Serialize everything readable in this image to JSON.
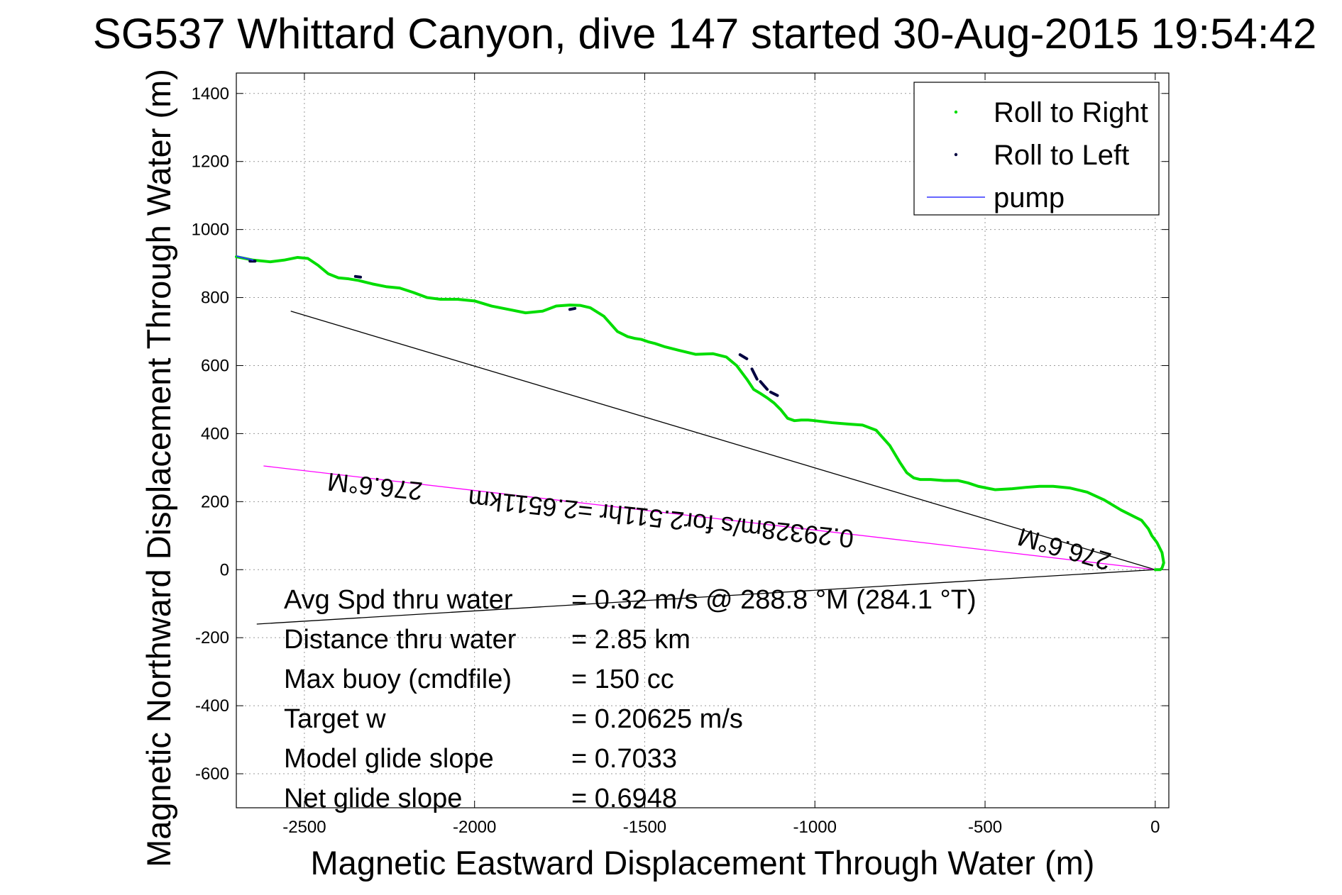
{
  "chart_data": {
    "type": "line",
    "title": "SG537 Whittard Canyon, dive 147 started 30-Aug-2015 19:54:42",
    "xlabel": "Magnetic Eastward Displacement Through Water (m)",
    "ylabel": "Magnetic Northward Displacement Through Water (m)",
    "xlim": [
      -2700,
      40
    ],
    "ylim": [
      -700,
      1460
    ],
    "xticks": [
      -2500,
      -2000,
      -1500,
      -1000,
      -500,
      0
    ],
    "yticks": [
      -600,
      -400,
      -200,
      0,
      200,
      400,
      600,
      800,
      1000,
      1200,
      1400
    ],
    "grid": true,
    "legend": {
      "placement": "top-right",
      "entries": [
        {
          "label": "Roll to Right",
          "color": "#00dd00",
          "marker": "point"
        },
        {
          "label": "Roll to Left",
          "color": "#000040",
          "marker": "point"
        },
        {
          "label": "pump",
          "color": "#3333ff",
          "marker": "line"
        }
      ]
    },
    "series": [
      {
        "name": "Roll to Right",
        "color": "#00dd00",
        "x": [
          -2700,
          -2650,
          -2600,
          -2560,
          -2520,
          -2490,
          -2460,
          -2430,
          -2400,
          -2370,
          -2340,
          -2300,
          -2260,
          -2220,
          -2180,
          -2140,
          -2100,
          -2050,
          -2000,
          -1950,
          -1900,
          -1850,
          -1800,
          -1760,
          -1720,
          -1690,
          -1660,
          -1620,
          -1580,
          -1550,
          -1530,
          -1510,
          -1490,
          -1470,
          -1440,
          -1400,
          -1350,
          -1300,
          -1260,
          -1230,
          -1200,
          -1180,
          -1160,
          -1140,
          -1120,
          -1100,
          -1080,
          -1060,
          -1040,
          -1020,
          -1000,
          -950,
          -900,
          -860,
          -820,
          -780,
          -750,
          -730,
          -710,
          -690,
          -660,
          -620,
          -580,
          -550,
          -520,
          -470,
          -420,
          -380,
          -340,
          -300,
          -250,
          -200,
          -150,
          -100,
          -60,
          -40,
          -20,
          -10,
          5,
          20,
          25,
          20,
          15,
          10,
          5,
          0
        ],
        "y": [
          920,
          910,
          905,
          910,
          918,
          915,
          895,
          870,
          858,
          855,
          850,
          840,
          832,
          828,
          815,
          800,
          795,
          795,
          790,
          775,
          765,
          755,
          760,
          775,
          778,
          777,
          770,
          745,
          700,
          685,
          680,
          677,
          670,
          665,
          655,
          645,
          633,
          635,
          625,
          600,
          560,
          530,
          518,
          505,
          490,
          470,
          445,
          438,
          440,
          440,
          438,
          432,
          428,
          425,
          410,
          365,
          315,
          285,
          270,
          265,
          265,
          262,
          262,
          255,
          245,
          235,
          238,
          242,
          245,
          245,
          240,
          228,
          205,
          175,
          155,
          145,
          120,
          100,
          80,
          50,
          20,
          5,
          0,
          0,
          0,
          0
        ]
      },
      {
        "name": "Roll to Left",
        "color": "#000040",
        "x": [
          -2660,
          -2645,
          -2350,
          -2335,
          -1720,
          -1705,
          -1220,
          -1200,
          -1185,
          -1170,
          -1160,
          -1140,
          -1130,
          -1110
        ],
        "y": [
          907,
          907,
          862,
          860,
          765,
          768,
          632,
          620,
          590,
          560,
          553,
          530,
          522,
          512
        ]
      },
      {
        "name": "pump",
        "color": "#3333ff",
        "x": [
          -2700,
          -2650
        ],
        "y": [
          922,
          910
        ]
      }
    ],
    "annotations": {
      "lines": [
        {
          "label": "magnetic heading line",
          "x": [
            -2540,
            0
          ],
          "y": [
            760,
            0
          ],
          "color": "#000000"
        },
        {
          "label": "magenta current line",
          "x": [
            -2620,
            0
          ],
          "y": [
            305,
            0
          ],
          "color": "#ff00ff"
        },
        {
          "label": "black return line",
          "x": [
            -2640,
            0
          ],
          "y": [
            -160,
            0
          ],
          "color": "#000000"
        }
      ],
      "rotated_texts": [
        {
          "text": "276.6°M",
          "anchor": [
            -2290,
            270
          ],
          "angle_deg": 186
        },
        {
          "text": "0.29328m/s for2.511hr =2.6511km",
          "anchor": [
            -1450,
            175
          ],
          "angle_deg": 186
        },
        {
          "text": "276.6°M",
          "anchor": [
            -260,
            85
          ],
          "angle_deg": 196
        }
      ]
    },
    "stats": [
      {
        "label": "Avg Spd thru water",
        "value": "=  0.32 m/s @ 288.8 °M (284.1 °T)"
      },
      {
        "label": "Distance thru water",
        "value": "=  2.85 km"
      },
      {
        "label": "Max buoy (cmdfile)",
        "value": "= 150 cc"
      },
      {
        "label": "Target w",
        "value": "= 0.20625 m/s"
      },
      {
        "label": "Model glide slope",
        "value": "= 0.7033"
      },
      {
        "label": "Net glide slope",
        "value": "= 0.6948"
      }
    ]
  }
}
